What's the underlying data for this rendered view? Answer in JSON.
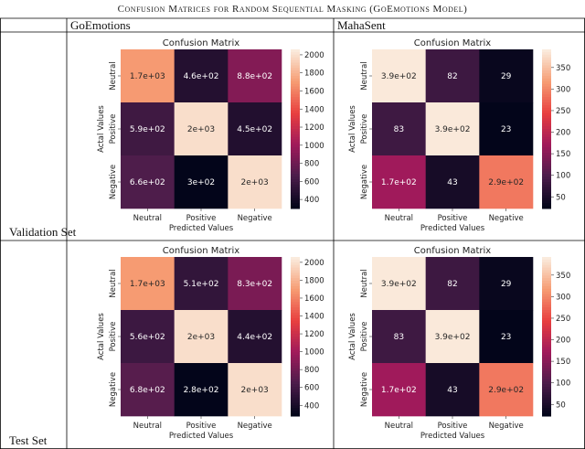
{
  "caption": "Confusion Matrices for Random Sequential Masking (GoEmotions Model)",
  "table": {
    "columns": [
      "GoEmotions",
      "MahaSent"
    ],
    "rows": [
      "Validation Set",
      "Test Set"
    ]
  },
  "colormap": [
    "#03051A",
    "#4C1D4B",
    "#A11A5B",
    "#E83F3F",
    "#F69C73",
    "#FAEBDD"
  ],
  "chart_data": [
    {
      "type": "heatmap",
      "dataset": "GoEmotions",
      "split": "Validation Set",
      "title": "Confusion Matrix",
      "xlabel": "Predicted Values",
      "ylabel": "Actal Values",
      "x_categories": [
        "Neutral",
        "Positive",
        "Negative"
      ],
      "y_categories": [
        "Neutral",
        "Positive",
        "Negative"
      ],
      "values": [
        [
          1700,
          460,
          880
        ],
        [
          590,
          2000,
          450
        ],
        [
          660,
          300,
          2000
        ]
      ],
      "annotations": [
        [
          "1.7e+03",
          "4.6e+02",
          "8.8e+02"
        ],
        [
          "5.9e+02",
          "2e+03",
          "4.5e+02"
        ],
        [
          "6.6e+02",
          "3e+02",
          "2e+03"
        ]
      ],
      "colorbar": {
        "range": [
          300,
          2060
        ],
        "ticks": [
          "400",
          "600",
          "800",
          "1000",
          "1200",
          "1400",
          "1600",
          "1800",
          "2000"
        ]
      }
    },
    {
      "type": "heatmap",
      "dataset": "MahaSent",
      "split": "Validation Set",
      "title": "Confusion Matrix",
      "xlabel": "Predicted Values",
      "ylabel": "Actal Values",
      "x_categories": [
        "Neutral",
        "Positive",
        "Negative"
      ],
      "y_categories": [
        "Neutral",
        "Positive",
        "Negative"
      ],
      "values": [
        [
          390,
          82,
          29
        ],
        [
          83,
          390,
          23
        ],
        [
          170,
          43,
          290
        ]
      ],
      "annotations": [
        [
          "3.9e+02",
          "82",
          "29"
        ],
        [
          "83",
          "3.9e+02",
          "23"
        ],
        [
          "1.7e+02",
          "43",
          "2.9e+02"
        ]
      ],
      "colorbar": {
        "range": [
          23,
          392
        ],
        "ticks": [
          "50",
          "100",
          "150",
          "200",
          "250",
          "300",
          "350"
        ]
      }
    },
    {
      "type": "heatmap",
      "dataset": "GoEmotions",
      "split": "Test Set",
      "title": "Confusion Matrix",
      "xlabel": "Predicted Values",
      "ylabel": "Actal Values",
      "x_categories": [
        "Neutral",
        "Positive",
        "Negative"
      ],
      "y_categories": [
        "Neutral",
        "Positive",
        "Negative"
      ],
      "values": [
        [
          1700,
          510,
          830
        ],
        [
          560,
          2000,
          440
        ],
        [
          680,
          280,
          2000
        ]
      ],
      "annotations": [
        [
          "1.7e+03",
          "5.1e+02",
          "8.3e+02"
        ],
        [
          "5.6e+02",
          "2e+03",
          "4.4e+02"
        ],
        [
          "6.8e+02",
          "2.8e+02",
          "2e+03"
        ]
      ],
      "colorbar": {
        "range": [
          280,
          2060
        ],
        "ticks": [
          "400",
          "600",
          "800",
          "1000",
          "1200",
          "1400",
          "1600",
          "1800",
          "2000"
        ]
      }
    },
    {
      "type": "heatmap",
      "dataset": "MahaSent",
      "split": "Test Set",
      "title": "Confusion Matrix",
      "xlabel": "Predicted Values",
      "ylabel": "Actal Values",
      "x_categories": [
        "Neutral",
        "Positive",
        "Negative"
      ],
      "y_categories": [
        "Neutral",
        "Positive",
        "Negative"
      ],
      "values": [
        [
          390,
          82,
          29
        ],
        [
          83,
          390,
          23
        ],
        [
          170,
          43,
          290
        ]
      ],
      "annotations": [
        [
          "3.9e+02",
          "82",
          "29"
        ],
        [
          "83",
          "3.9e+02",
          "23"
        ],
        [
          "1.7e+02",
          "43",
          "2.9e+02"
        ]
      ],
      "colorbar": {
        "range": [
          23,
          392
        ],
        "ticks": [
          "50",
          "100",
          "150",
          "200",
          "250",
          "300",
          "350"
        ]
      }
    }
  ]
}
